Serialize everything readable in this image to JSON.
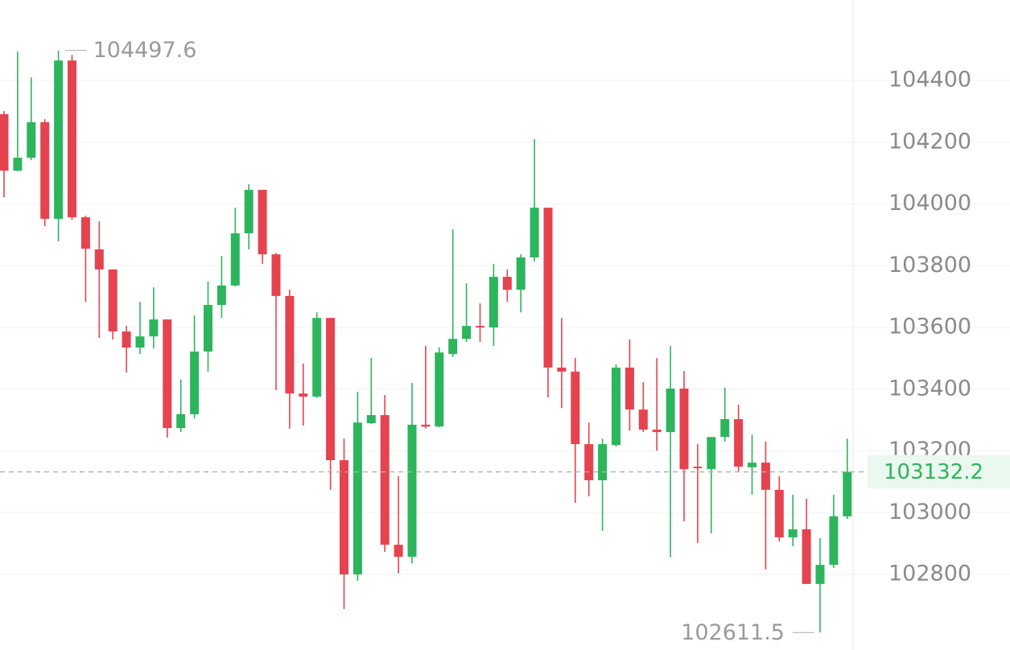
{
  "chart_data": {
    "type": "candlestick",
    "up_color": "#2db55d",
    "down_color": "#e5434f",
    "ylim": [
      102555,
      104661
    ],
    "yticks": [
      102800,
      103000,
      103200,
      103400,
      103600,
      103800,
      104000,
      104200,
      104400
    ],
    "grid": true,
    "open": [
      104291,
      104108,
      104150,
      104265,
      103952,
      104465,
      103957,
      103853,
      103788,
      103587,
      103535,
      103571,
      103626,
      103274,
      103319,
      103522,
      103673,
      103736,
      103905,
      104046,
      103837,
      103702,
      103386,
      103376,
      103631,
      103170,
      102800,
      103290,
      103316,
      102896,
      102857,
      103285,
      103279,
      103514,
      103563,
      103605,
      103600,
      103764,
      103722,
      103827,
      103988,
      103470,
      103457,
      103222,
      103105,
      103219,
      103470,
      103334,
      103269,
      103261,
      103402,
      103149,
      103141,
      103245,
      103303,
      103147,
      103162,
      103074,
      102920,
      102946,
      102769,
      102831,
      102988
    ],
    "high": [
      104301,
      104494,
      104410,
      104275,
      104497.6,
      104483,
      103962,
      103944,
      103788,
      103605,
      103683,
      103730,
      103626,
      103431,
      103639,
      103749,
      103832,
      103988,
      104064,
      104046,
      103842,
      103722,
      103483,
      103649,
      103631,
      103240,
      103392,
      103501,
      103381,
      103118,
      103420,
      103540,
      103535,
      103918,
      103743,
      103678,
      103806,
      103788,
      103837,
      104210,
      103988,
      103631,
      103501,
      103292,
      103240,
      103480,
      103561,
      103423,
      103501,
      103540,
      103459,
      103222,
      103245,
      103405,
      103350,
      103253,
      103230,
      103118,
      103058,
      103045,
      102917,
      103058,
      103240
    ],
    "low": [
      104022,
      104106,
      104142,
      103928,
      103879,
      103949,
      103683,
      103566,
      103561,
      103454,
      103514,
      103532,
      103243,
      103261,
      103305,
      103457,
      103631,
      103733,
      103853,
      103806,
      103397,
      103272,
      103282,
      103371,
      103074,
      102688,
      102779,
      103287,
      102873,
      102803,
      102836,
      103272,
      103277,
      103504,
      103553,
      103553,
      103540,
      103683,
      103649,
      103814,
      103373,
      103339,
      103032,
      103053,
      102941,
      103214,
      103266,
      103261,
      103201,
      102855,
      102972,
      102902,
      102933,
      103230,
      103134,
      103058,
      102816,
      102907,
      102891,
      102769,
      102611.5,
      102821,
      102980
    ],
    "close": [
      104108,
      104150,
      104265,
      103952,
      104465,
      103957,
      103855,
      103788,
      103587,
      103535,
      103571,
      103626,
      103274,
      103319,
      103522,
      103673,
      103736,
      103905,
      104046,
      103837,
      103702,
      103386,
      103376,
      103631,
      103170,
      102800,
      103292,
      103316,
      102896,
      102857,
      103285,
      103279,
      103519,
      103563,
      103605,
      103600,
      103764,
      103722,
      103827,
      103988,
      103470,
      103457,
      103222,
      103105,
      103222,
      103470,
      103334,
      103269,
      103261,
      103402,
      103141,
      103144,
      103245,
      103303,
      103149,
      103162,
      103074,
      102920,
      102946,
      102769,
      102831,
      102988,
      103132.2
    ]
  }
}
